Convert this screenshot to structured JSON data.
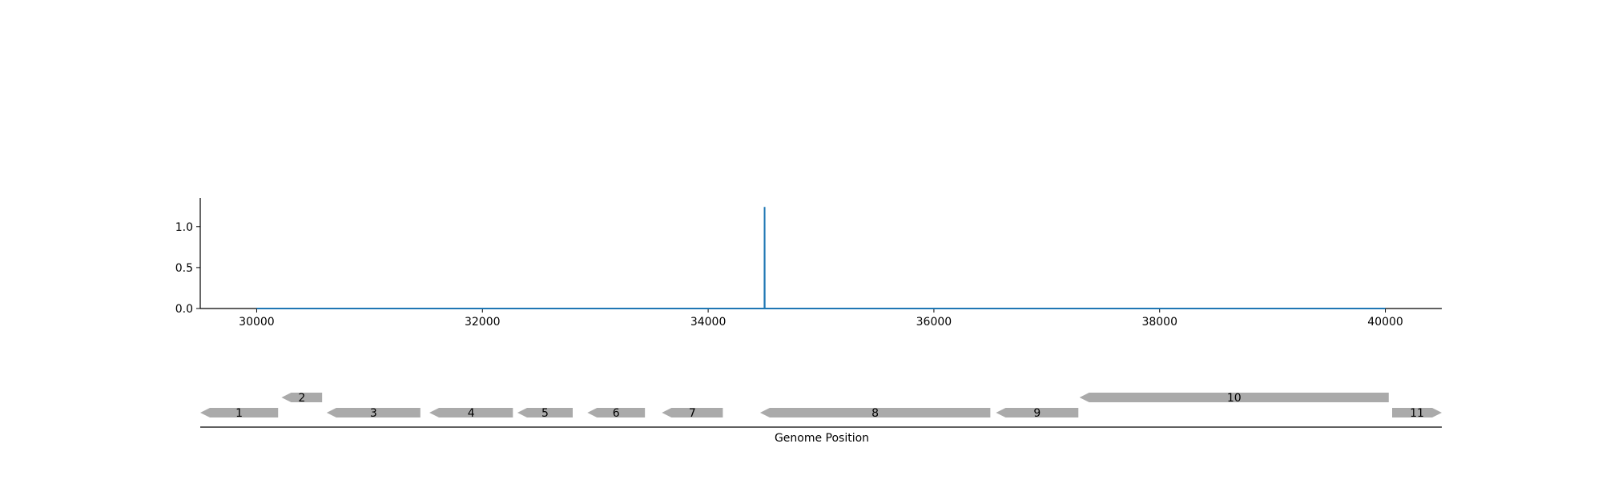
{
  "chart_data": [
    {
      "type": "line",
      "title": "",
      "xlabel": "",
      "ylabel": "",
      "xlim": [
        29500,
        40500
      ],
      "ylim": [
        0,
        1.35
      ],
      "xticks": [
        30000,
        32000,
        34000,
        36000,
        38000,
        40000
      ],
      "xtick_labels": [
        "30000",
        "32000",
        "34000",
        "36000",
        "38000",
        "40000"
      ],
      "yticks": [
        0.0,
        0.5,
        1.0
      ],
      "ytick_labels": [
        "0.0",
        "0.5",
        "1.0"
      ],
      "grid": false,
      "series": [
        {
          "color": "#1f77b4",
          "x": [
            30000,
            34499,
            34500,
            34501,
            40000
          ],
          "y": [
            0,
            0,
            1.24,
            0,
            0
          ]
        }
      ]
    },
    {
      "type": "gene_map",
      "xlabel": "Genome Position",
      "xlim": [
        29500,
        40500
      ],
      "genes": [
        {
          "label": "1",
          "start": 29500,
          "end": 30190,
          "strand": "-",
          "track": 0
        },
        {
          "label": "2",
          "start": 30220,
          "end": 30580,
          "strand": "-",
          "track": 1
        },
        {
          "label": "3",
          "start": 30620,
          "end": 31450,
          "strand": "-",
          "track": 0
        },
        {
          "label": "4",
          "start": 31530,
          "end": 32270,
          "strand": "-",
          "track": 0
        },
        {
          "label": "5",
          "start": 32310,
          "end": 32800,
          "strand": "-",
          "track": 0
        },
        {
          "label": "6",
          "start": 32930,
          "end": 33440,
          "strand": "-",
          "track": 0
        },
        {
          "label": "7",
          "start": 33590,
          "end": 34130,
          "strand": "-",
          "track": 0
        },
        {
          "label": "8",
          "start": 34460,
          "end": 36500,
          "strand": "-",
          "track": 0
        },
        {
          "label": "9",
          "start": 36550,
          "end": 37280,
          "strand": "-",
          "track": 0
        },
        {
          "label": "10",
          "start": 37290,
          "end": 40030,
          "strand": "-",
          "track": 1
        },
        {
          "label": "11",
          "start": 40060,
          "end": 40500,
          "strand": "+",
          "track": 0
        }
      ],
      "gene_color": "#aaaaaa"
    }
  ]
}
